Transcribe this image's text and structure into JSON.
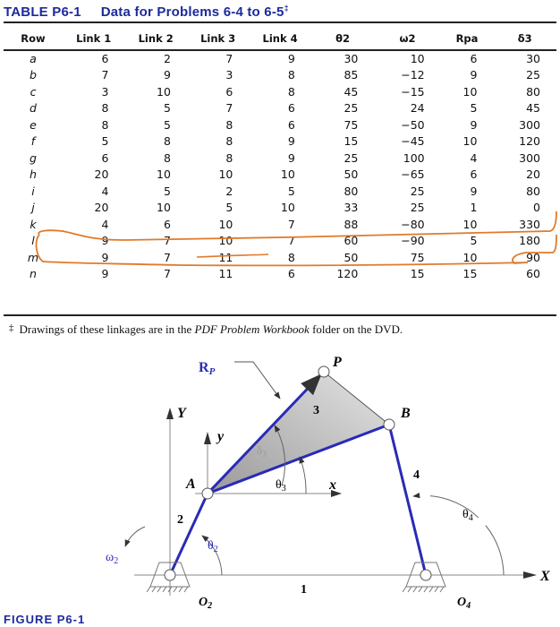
{
  "table": {
    "title_number": "TABLE P6-1",
    "title_text": "Data for Problems 6-4 to 6-5",
    "title_mark": "‡",
    "columns": [
      "Row",
      "Link 1",
      "Link 2",
      "Link 3",
      "Link 4",
      "θ2",
      "ω2",
      "Rpa",
      "δ3"
    ],
    "rows": [
      [
        "a",
        "6",
        "2",
        "7",
        "9",
        "30",
        "10",
        "6",
        "30"
      ],
      [
        "b",
        "7",
        "9",
        "3",
        "8",
        "85",
        "−12",
        "9",
        "25"
      ],
      [
        "c",
        "3",
        "10",
        "6",
        "8",
        "45",
        "−15",
        "10",
        "80"
      ],
      [
        "d",
        "8",
        "5",
        "7",
        "6",
        "25",
        "24",
        "5",
        "45"
      ],
      [
        "e",
        "8",
        "5",
        "8",
        "6",
        "75",
        "−50",
        "9",
        "300"
      ],
      [
        "f",
        "5",
        "8",
        "8",
        "9",
        "15",
        "−45",
        "10",
        "120"
      ],
      [
        "g",
        "6",
        "8",
        "8",
        "9",
        "25",
        "100",
        "4",
        "300"
      ],
      [
        "h",
        "20",
        "10",
        "10",
        "10",
        "50",
        "−65",
        "6",
        "20"
      ],
      [
        "i",
        "4",
        "5",
        "2",
        "5",
        "80",
        "25",
        "9",
        "80"
      ],
      [
        "j",
        "20",
        "10",
        "5",
        "10",
        "33",
        "25",
        "1",
        "0"
      ],
      [
        "k",
        "4",
        "6",
        "10",
        "7",
        "88",
        "−80",
        "10",
        "330"
      ],
      [
        "l",
        "9",
        "7",
        "10",
        "7",
        "60",
        "−90",
        "5",
        "180"
      ],
      [
        "m",
        "9",
        "7",
        "11",
        "8",
        "50",
        "75",
        "10",
        "90"
      ],
      [
        "n",
        "9",
        "7",
        "11",
        "6",
        "120",
        "15",
        "15",
        "60"
      ]
    ],
    "highlighted_row": "k",
    "highlight_color": "#e07a2a"
  },
  "footnote": {
    "mark": "‡",
    "before": "Drawings of these linkages are in the ",
    "italic": "PDF Problem Workbook",
    "after": " folder on the DVD."
  },
  "figure": {
    "caption": "FIGURE P6-1",
    "labels": {
      "rp": "R",
      "rp_sub": "P",
      "p": "P",
      "b": "B",
      "a": "A",
      "link3": "3",
      "link2": "2",
      "link4": "4",
      "link1": "1",
      "big_y": "Y",
      "big_x": "X",
      "small_y": "y",
      "small_x": "x",
      "theta3": "θ",
      "theta3_sub": "3",
      "theta2": "θ",
      "theta2_sub": "2",
      "theta4": "θ",
      "theta4_sub": "4",
      "omega2": "ω",
      "omega2_sub": "2",
      "delta3": "δ",
      "delta3_sub": "3",
      "o2": "O",
      "o2_sub": "2",
      "o4": "O",
      "o4_sub": "4"
    },
    "colors": {
      "link": "#2a2ab8",
      "label_blue": "#2a2ab8",
      "title_blue": "#1c2a9c",
      "coupler_fill": "#b8b8b8"
    }
  }
}
